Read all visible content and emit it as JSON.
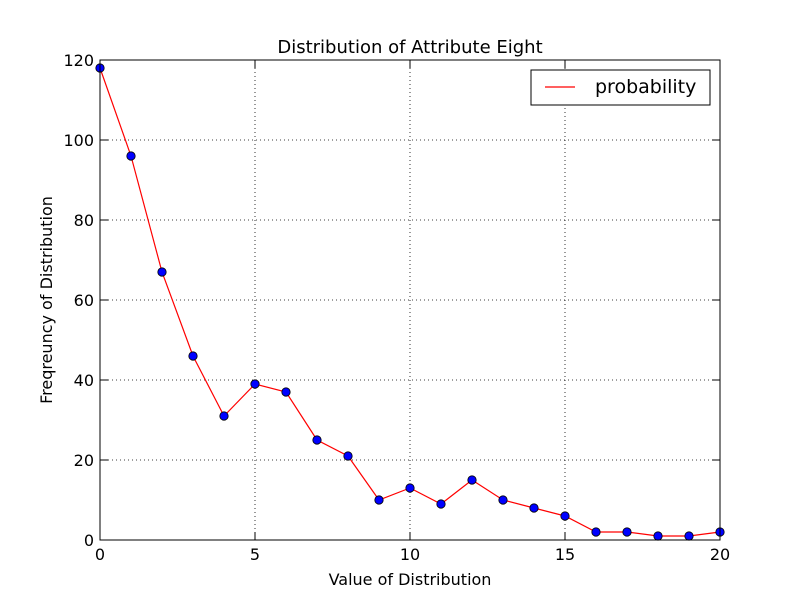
{
  "chart_data": {
    "type": "line",
    "title": "Distribution of Attribute Eight",
    "xlabel": "Value of Distribution",
    "ylabel": "Freqreuncy of Distribution",
    "xlim": [
      0,
      20
    ],
    "ylim": [
      0,
      120
    ],
    "x_ticks": [
      0,
      5,
      10,
      15,
      20
    ],
    "y_ticks": [
      0,
      20,
      40,
      60,
      80,
      100,
      120
    ],
    "grid": true,
    "legend_position": "top-right",
    "series": [
      {
        "name": "probability",
        "line_color": "#ff0000",
        "marker_color": "#0000ff",
        "x": [
          0,
          1,
          2,
          3,
          4,
          5,
          6,
          7,
          8,
          9,
          10,
          11,
          12,
          13,
          14,
          15,
          16,
          17,
          18,
          19,
          20
        ],
        "y": [
          118,
          96,
          67,
          46,
          31,
          39,
          37,
          25,
          21,
          10,
          13,
          9,
          15,
          10,
          8,
          6,
          2,
          2,
          1,
          1,
          2
        ]
      }
    ]
  }
}
